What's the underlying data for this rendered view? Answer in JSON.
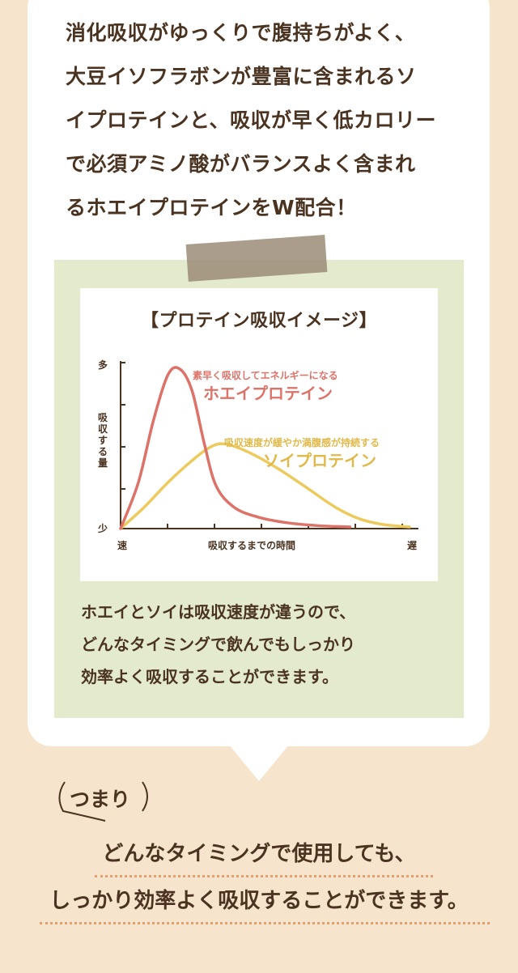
{
  "intro": {
    "lines": [
      "消化吸収がゆっくりで腹持ちがよく、",
      "大豆イソフラボンが豊富に含まれるソ",
      "イプロテインと、吸収が早く低カロリー",
      "で必須アミノ酸がバランスよく含まれ",
      "るホエイプロテインをW配合！"
    ]
  },
  "chart_data": {
    "type": "line",
    "title": "【プロテイン吸収イメージ】",
    "xlabel": "吸収するまでの時間",
    "ylabel": "吸収する量",
    "x_start_label": "速",
    "x_end_label": "遅",
    "y_top_label": "多",
    "y_bottom_label": "少",
    "xlim": [
      0,
      10
    ],
    "ylim": [
      0,
      10
    ],
    "series": [
      {
        "name": "ホエイプロテイン",
        "caption": "素早く吸収してエネルギーになる",
        "color": "#dd7268",
        "x": [
          0,
          0.6,
          1.1,
          1.6,
          2.0,
          2.4,
          2.8,
          3.2,
          3.8,
          4.6,
          5.6,
          6.6,
          7.7
        ],
        "y": [
          0,
          2.8,
          6.5,
          9.3,
          9.6,
          8.3,
          5.2,
          2.6,
          1.3,
          0.7,
          0.35,
          0.18,
          0.1
        ]
      },
      {
        "name": "ソイプロテイン",
        "caption": "吸収速度が緩やか満腹感が持続する",
        "color": "#eccb5c",
        "x": [
          0,
          0.8,
          1.6,
          2.4,
          3.0,
          3.5,
          4.3,
          5.3,
          6.3,
          7.2,
          8.0,
          8.8,
          9.7
        ],
        "y": [
          0,
          1.3,
          2.8,
          4.1,
          4.9,
          5.1,
          4.6,
          3.6,
          2.4,
          1.3,
          0.6,
          0.25,
          0.1
        ]
      }
    ]
  },
  "green_box": {
    "lines": [
      "ホエイとソイは吸収速度が違うので、",
      "どんなタイミングで飲んでもしっかり",
      "効率よく吸収することができます。"
    ]
  },
  "conclusion": {
    "lead": "つまり",
    "line1": "どんなタイミングで使用しても、",
    "line2": "しっかり効率よく吸収することができます。"
  }
}
